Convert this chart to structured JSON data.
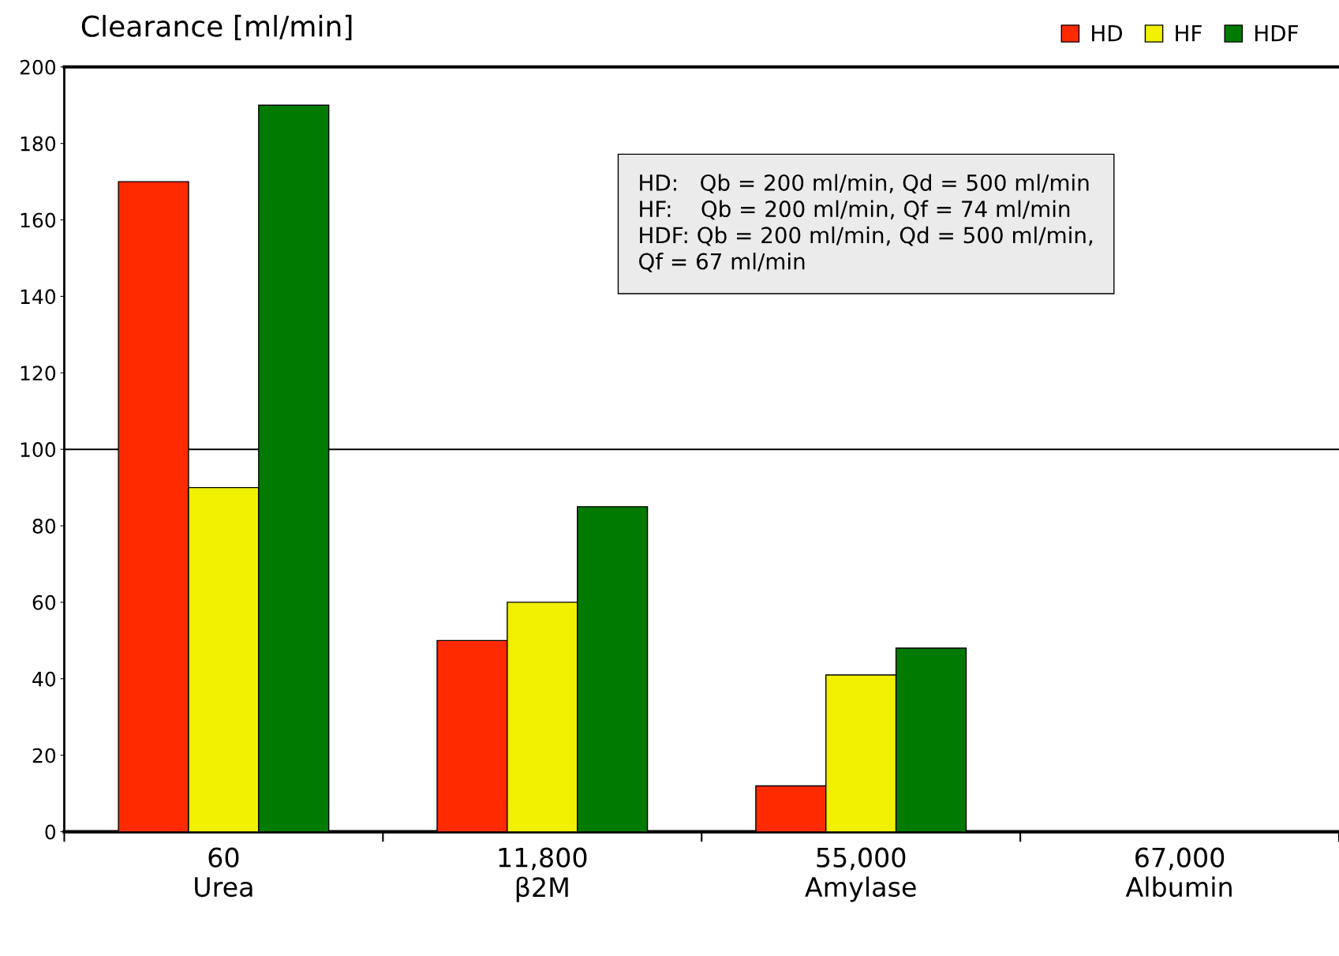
{
  "chart_data": {
    "type": "bar",
    "ylabel": "Clearance [ml/min]",
    "categories": [
      "60\nUrea",
      "11,800\nβ2M",
      "55,000\nAmylase",
      "67,000\nAlbumin"
    ],
    "series": [
      {
        "name": "HD",
        "color": "#ff2a00",
        "values": [
          170,
          50,
          12,
          null
        ]
      },
      {
        "name": "HF",
        "color": "#f0f000",
        "values": [
          90,
          60,
          41,
          null
        ]
      },
      {
        "name": "HDF",
        "color": "#007a00",
        "values": [
          190,
          85,
          48,
          null
        ]
      }
    ],
    "ylim": [
      0,
      200
    ],
    "yticks": [
      0,
      20,
      40,
      60,
      80,
      100,
      120,
      140,
      160,
      180,
      200
    ],
    "ref_lines": [
      {
        "axis": "y",
        "value": 100,
        "color": "#000000"
      }
    ],
    "annotations": [
      "HD:   Qb = 200 ml/min, Qd = 500 ml/min\nHF:    Qb = 200 ml/min, Qf = 74 ml/min\nHDF: Qb = 200 ml/min, Qd = 500 ml/min,\nQf = 67 ml/min"
    ],
    "grid": false,
    "legend": "top right"
  }
}
